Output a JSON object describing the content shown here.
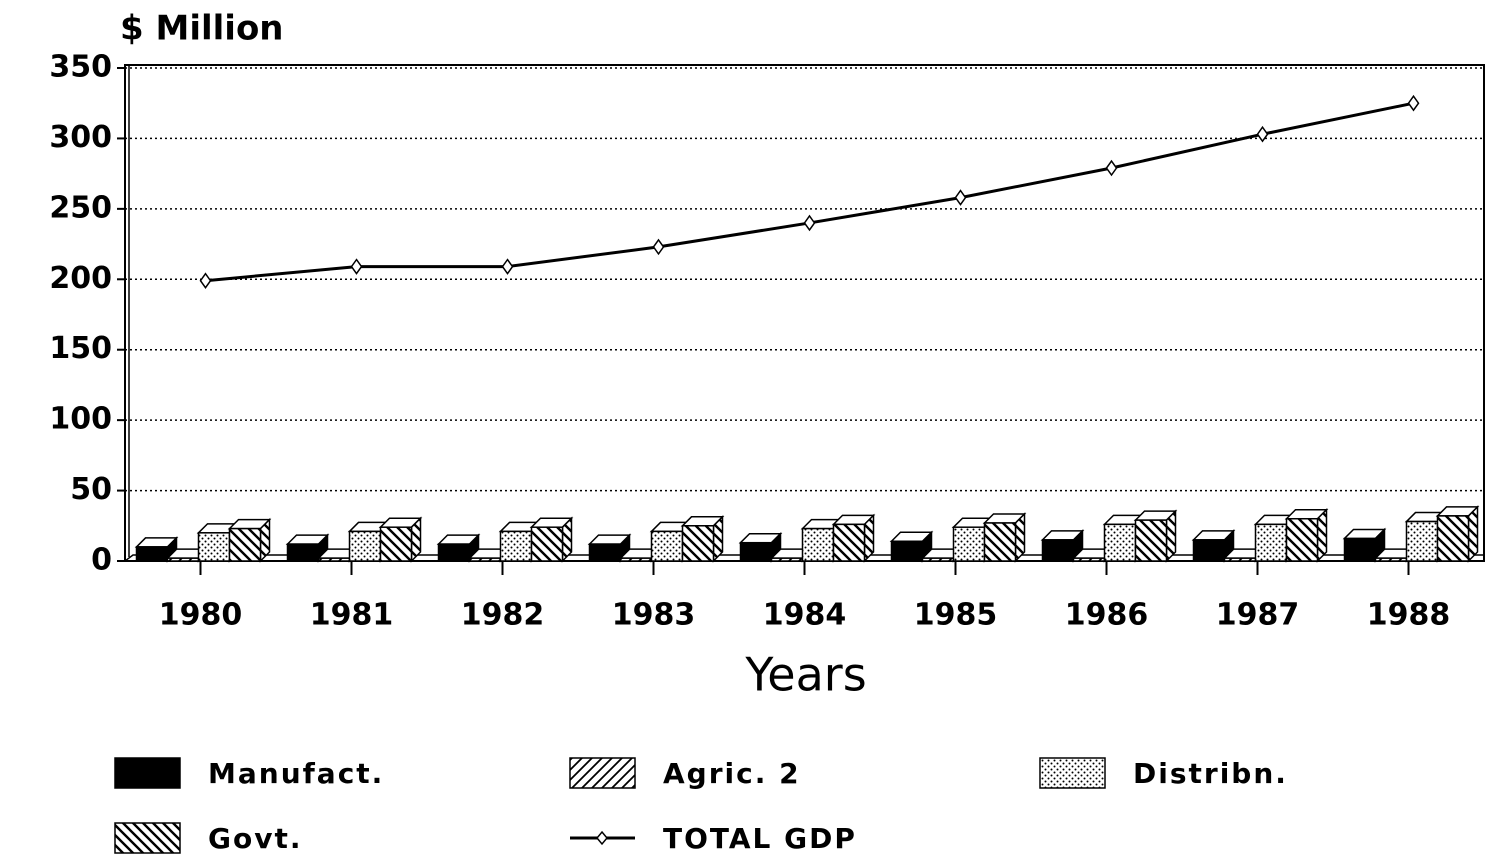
{
  "chart_data": {
    "type": "bar",
    "y_axis_label": "$ Million",
    "x_axis_label": "Years",
    "categories": [
      "1980",
      "1981",
      "1982",
      "1983",
      "1984",
      "1985",
      "1986",
      "1987",
      "1988"
    ],
    "series": [
      {
        "name": "Manufact.",
        "color": "#000000",
        "pattern": "solid",
        "values": [
          10,
          12,
          12,
          12,
          13,
          14,
          15,
          15,
          16
        ]
      },
      {
        "name": "Agric. 2",
        "color": "#000000",
        "pattern": "diagonal-up",
        "values": [
          2,
          2,
          2,
          2,
          2,
          2,
          2,
          2,
          2
        ]
      },
      {
        "name": "Distribn.",
        "color": "#000000",
        "pattern": "dots",
        "values": [
          20,
          21,
          21,
          21,
          23,
          24,
          26,
          26,
          28
        ]
      },
      {
        "name": "Govt.",
        "color": "#000000",
        "pattern": "diagonal-down",
        "values": [
          23,
          24,
          24,
          25,
          26,
          27,
          29,
          30,
          32
        ]
      },
      {
        "name": "TOTAL GDP",
        "color": "#000000",
        "type": "line",
        "values": [
          199,
          209,
          209,
          223,
          240,
          258,
          279,
          303,
          325
        ]
      }
    ],
    "ylim": [
      0,
      350
    ],
    "yticks": [
      0,
      50,
      100,
      150,
      200,
      250,
      300,
      350
    ],
    "grid": true
  }
}
